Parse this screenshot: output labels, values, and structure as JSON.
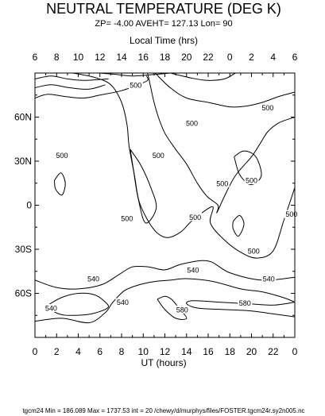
{
  "chart_data": {
    "type": "contour",
    "title": "NEUTRAL TEMPERATURE (DEG K)",
    "subtitle": "ZP= -4.00 AVEHT= 127.13 Lon= 90",
    "top_axis_label": "Local Time (hrs)",
    "bottom_axis_label": "UT (hours)",
    "footer": "tgcm24 Min = 186.089  Max  = 1737.53  int = 20 /chewy/d/murphys/files/FOSTER.tgcm24r.sy2n005.nc",
    "x_range": [
      0,
      24
    ],
    "y_range": [
      -90,
      90
    ],
    "ut_ticks": [
      "0",
      "2",
      "4",
      "6",
      "8",
      "10",
      "12",
      "14",
      "16",
      "18",
      "20",
      "22",
      "0"
    ],
    "lt_ticks": [
      "6",
      "8",
      "10",
      "12",
      "14",
      "16",
      "18",
      "20",
      "22",
      "0",
      "2",
      "4",
      "6"
    ],
    "lat_ticks": [
      {
        "value": 60,
        "label": "60N"
      },
      {
        "value": 30,
        "label": "30N"
      },
      {
        "value": 0,
        "label": "0"
      },
      {
        "value": -30,
        "label": "30S"
      },
      {
        "value": -60,
        "label": "60S"
      }
    ],
    "contour_interval": 20,
    "min": 186.089,
    "max": 1737.53,
    "contours": [
      {
        "level": 500,
        "points": [
          [
            0,
            80
          ],
          [
            1.5,
            82
          ],
          [
            3.2,
            80
          ],
          [
            5,
            79
          ],
          [
            6.5,
            82
          ]
        ]
      },
      {
        "level": 500,
        "points": [
          [
            0,
            86
          ],
          [
            1.5,
            88
          ],
          [
            3,
            86
          ],
          [
            4.5,
            85
          ],
          [
            6.8,
            86
          ]
        ]
      },
      {
        "level": 500,
        "points": [
          [
            0,
            73
          ],
          [
            1.2,
            75.5
          ],
          [
            2.8,
            74
          ],
          [
            4.5,
            73
          ],
          [
            6,
            75
          ],
          [
            8,
            78
          ],
          [
            9.5,
            82
          ],
          [
            10.4,
            85
          ],
          [
            10.3,
            88
          ]
        ]
      },
      {
        "level": 500,
        "points": [
          [
            3.5,
            90
          ],
          [
            5.5,
            87
          ],
          [
            7,
            82
          ],
          [
            8,
            70
          ],
          [
            8.5,
            55
          ],
          [
            8.7,
            40
          ],
          [
            9.2,
            20
          ],
          [
            9.6,
            3
          ],
          [
            10.4,
            -10
          ],
          [
            11.3,
            -19
          ],
          [
            12.3,
            -22
          ],
          [
            13.5,
            -18
          ],
          [
            14.6,
            -10
          ],
          [
            16.4,
            -1
          ],
          [
            16.2,
            -12
          ],
          [
            17.4,
            -23
          ],
          [
            19,
            -32
          ],
          [
            20.5,
            -36
          ],
          [
            22,
            -31
          ],
          [
            23,
            -10
          ],
          [
            24,
            12
          ]
        ]
      },
      {
        "level": 500,
        "points": [
          [
            6,
            90
          ],
          [
            7.5,
            89
          ],
          [
            9,
            88
          ],
          [
            11,
            89
          ],
          [
            12.5,
            90
          ]
        ]
      },
      {
        "level": 500,
        "points": [
          [
            11.1,
            90
          ],
          [
            12.5,
            80
          ],
          [
            14,
            73
          ],
          [
            16,
            70
          ],
          [
            18,
            67
          ],
          [
            19.5,
            67.5
          ],
          [
            21,
            70
          ],
          [
            22.5,
            74
          ],
          [
            24,
            77
          ]
        ]
      },
      {
        "level": 500,
        "points": [
          [
            12.5,
            90
          ],
          [
            14.5,
            86.5
          ],
          [
            16,
            85
          ],
          [
            17.5,
            86
          ],
          [
            18.5,
            90
          ]
        ]
      },
      {
        "level": 500,
        "points": [
          [
            24,
            60
          ],
          [
            22.5,
            56
          ],
          [
            21.5,
            50
          ],
          [
            20.8,
            42
          ],
          [
            20,
            33
          ],
          [
            18.5,
            20
          ],
          [
            17.5,
            6
          ],
          [
            16.8,
            -5
          ],
          [
            16.9,
            0
          ],
          [
            15.9,
            6
          ],
          [
            15,
            15
          ],
          [
            14,
            28
          ],
          [
            13,
            38
          ],
          [
            12,
            49
          ],
          [
            11.4,
            60
          ],
          [
            11,
            70
          ],
          [
            10.7,
            80
          ],
          [
            10.4,
            90
          ]
        ]
      },
      {
        "level": 500,
        "points": [
          [
            8.8,
            38
          ],
          [
            9.8,
            27
          ],
          [
            10.7,
            12
          ],
          [
            11.2,
            -2
          ],
          [
            10.2,
            -12
          ],
          [
            9.5,
            6
          ],
          [
            9.1,
            24
          ],
          [
            8.8,
            38
          ]
        ]
      },
      {
        "level": 500,
        "points": [
          [
            1.8,
            17
          ],
          [
            2.4,
            22
          ],
          [
            2.8,
            15
          ],
          [
            2.5,
            7
          ],
          [
            1.9,
            11
          ],
          [
            1.8,
            17
          ]
        ]
      },
      {
        "level": 500,
        "points": [
          [
            18.4,
            33
          ],
          [
            19.3,
            37
          ],
          [
            20.4,
            33
          ],
          [
            20.9,
            20
          ],
          [
            19.9,
            14
          ],
          [
            18.9,
            21
          ],
          [
            18.4,
            33
          ]
        ]
      },
      {
        "level": 500,
        "points": [
          [
            18.3,
            -11
          ],
          [
            18.9,
            -7
          ],
          [
            19.3,
            -13
          ],
          [
            18.8,
            -21
          ],
          [
            18.3,
            -16
          ],
          [
            18.3,
            -11
          ]
        ]
      },
      {
        "level": 540,
        "points": [
          [
            0,
            -51
          ],
          [
            2,
            -56
          ],
          [
            4,
            -57
          ],
          [
            6.2,
            -54
          ],
          [
            7.8,
            -47
          ],
          [
            9,
            -42
          ],
          [
            10.5,
            -42
          ],
          [
            12,
            -44
          ],
          [
            13.6,
            -40
          ],
          [
            16,
            -38
          ],
          [
            18,
            -46
          ],
          [
            21,
            -51
          ],
          [
            24,
            -49
          ]
        ]
      },
      {
        "level": 540,
        "points": [
          [
            0,
            -79
          ],
          [
            2.5,
            -77
          ],
          [
            5,
            -80
          ],
          [
            6.5,
            -73
          ],
          [
            7.2,
            -66
          ],
          [
            8.3,
            -58
          ],
          [
            9.7,
            -54
          ],
          [
            11,
            -52
          ],
          [
            12.5,
            -51
          ],
          [
            14,
            -50
          ],
          [
            16.5,
            -52
          ],
          [
            19,
            -57
          ],
          [
            21,
            -59
          ],
          [
            23,
            -63
          ],
          [
            24,
            -66
          ]
        ]
      },
      {
        "level": 540,
        "points": [
          [
            1,
            -69
          ],
          [
            2.4,
            -63
          ],
          [
            4,
            -60
          ],
          [
            5.5,
            -61
          ],
          [
            6.5,
            -66
          ],
          [
            6.7,
            -70
          ],
          [
            5.2,
            -74
          ],
          [
            3.5,
            -75
          ],
          [
            2.2,
            -74
          ],
          [
            1,
            -69
          ]
        ]
      },
      {
        "level": 580,
        "points": [
          [
            11.3,
            -64
          ],
          [
            12,
            -71
          ],
          [
            13,
            -77
          ],
          [
            14,
            -77
          ],
          [
            13.3,
            -70
          ],
          [
            12.6,
            -64
          ],
          [
            12,
            -62
          ],
          [
            11.3,
            -64
          ]
        ]
      },
      {
        "level": 580,
        "points": [
          [
            24,
            -66
          ],
          [
            22,
            -68
          ],
          [
            19.5,
            -67
          ],
          [
            17,
            -66
          ],
          [
            14.6,
            -65
          ],
          [
            14,
            -67
          ],
          [
            15,
            -70
          ],
          [
            17.5,
            -71
          ],
          [
            20,
            -72
          ],
          [
            22,
            -74
          ],
          [
            24,
            -76
          ]
        ]
      }
    ],
    "contour_labels": [
      {
        "x": 9.3,
        "y": 82,
        "text": "500"
      },
      {
        "x": 21.5,
        "y": 66.5,
        "text": "500"
      },
      {
        "x": 14.5,
        "y": 56,
        "text": "500"
      },
      {
        "x": 2.5,
        "y": 34,
        "text": "500"
      },
      {
        "x": 11.4,
        "y": 34,
        "text": "500"
      },
      {
        "x": 17.3,
        "y": 15,
        "text": "500"
      },
      {
        "x": 20,
        "y": 17,
        "text": "500"
      },
      {
        "x": 8.5,
        "y": -9,
        "text": "500"
      },
      {
        "x": 14.8,
        "y": -8,
        "text": "500"
      },
      {
        "x": 20.2,
        "y": -31,
        "text": "500"
      },
      {
        "x": 23.7,
        "y": -6,
        "text": "500"
      },
      {
        "x": 5.4,
        "y": -50,
        "text": "540"
      },
      {
        "x": 14.6,
        "y": -44,
        "text": "540"
      },
      {
        "x": 21.6,
        "y": -50,
        "text": "540"
      },
      {
        "x": 1.5,
        "y": -70,
        "text": "540"
      },
      {
        "x": 8.1,
        "y": -66,
        "text": "540"
      },
      {
        "x": 13.6,
        "y": -71,
        "text": "580"
      },
      {
        "x": 19.4,
        "y": -66.5,
        "text": "580"
      }
    ]
  }
}
